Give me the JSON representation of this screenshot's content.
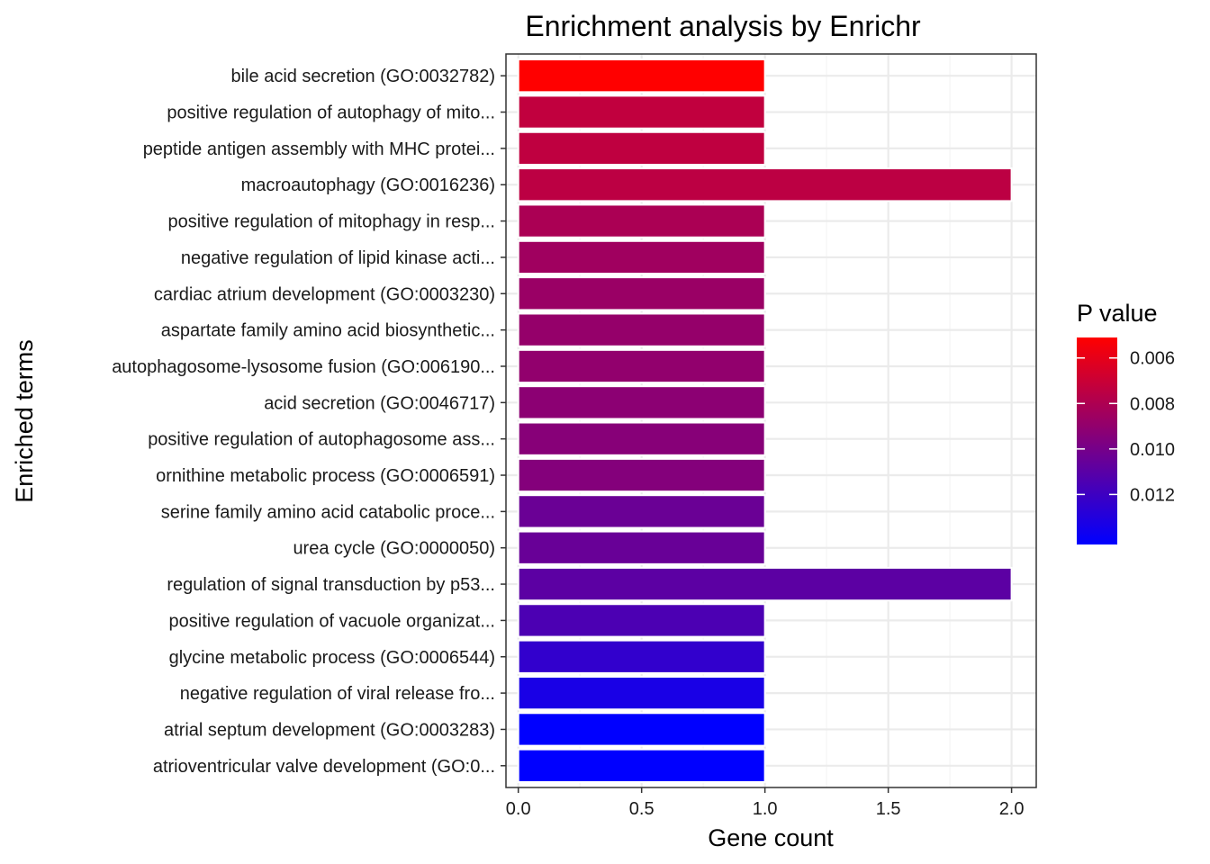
{
  "chart_data": {
    "type": "bar",
    "orientation": "horizontal",
    "title": "Enrichment analysis by Enrichr",
    "xlabel": "Gene count",
    "ylabel": "Enriched terms",
    "xlim": [
      -0.05,
      2.1
    ],
    "xticks": [
      0.0,
      0.5,
      1.0,
      1.5,
      2.0
    ],
    "xtick_labels": [
      "0.0",
      "0.5",
      "1.0",
      "1.5",
      "2.0"
    ],
    "grid": true,
    "categories": [
      "bile acid secretion (GO:0032782)",
      "positive regulation of autophagy of mito...",
      "peptide antigen assembly with MHC protei...",
      "macroautophagy (GO:0016236)",
      "positive regulation of mitophagy in resp...",
      "negative regulation of lipid kinase acti...",
      "cardiac atrium development (GO:0003230)",
      "aspartate family amino acid biosynthetic...",
      "autophagosome-lysosome fusion (GO:006190...",
      "acid secretion (GO:0046717)",
      "positive regulation of autophagosome ass...",
      "ornithine metabolic process (GO:0006591)",
      "serine family amino acid catabolic proce...",
      "urea cycle (GO:0000050)",
      "regulation of signal transduction by p53...",
      "positive regulation of vacuole organizat...",
      "glycine metabolic process (GO:0006544)",
      "negative regulation of viral release fro...",
      "atrial septum development (GO:0003283)",
      "atrioventricular valve development (GO:0..."
    ],
    "values": [
      1,
      1,
      1,
      2,
      1,
      1,
      1,
      1,
      1,
      1,
      1,
      1,
      1,
      1,
      2,
      1,
      1,
      1,
      1,
      1
    ],
    "p_values": [
      0.0051,
      0.0073,
      0.0074,
      0.0075,
      0.0081,
      0.0085,
      0.0087,
      0.0089,
      0.009,
      0.0092,
      0.0094,
      0.0095,
      0.0104,
      0.0105,
      0.0109,
      0.0115,
      0.0124,
      0.0133,
      0.0142,
      0.0142
    ],
    "legend": {
      "title": "P value",
      "placement": "right",
      "range": [
        0.0051,
        0.0142
      ],
      "ticks": [
        0.006,
        0.008,
        0.01,
        0.012
      ],
      "tick_labels": [
        "0.006",
        "0.008",
        "0.010",
        "0.012"
      ],
      "low_color": "#ff0000",
      "high_color": "#0000ff"
    },
    "colors": {
      "panel_border": "#333333",
      "grid_major": "#ebebeb",
      "grid_minor": "#f5f5f5",
      "bar_outline": "#ffffff"
    }
  }
}
